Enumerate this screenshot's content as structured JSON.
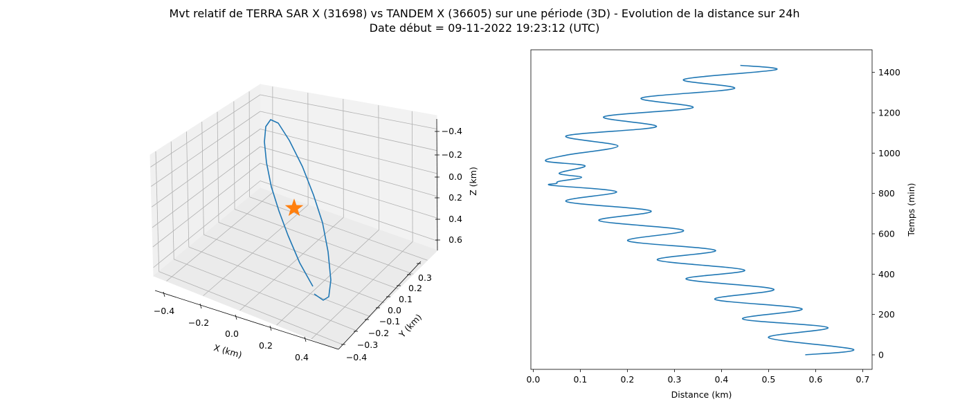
{
  "title_line1": "Mvt relatif de TERRA SAR X (31698) vs TANDEM X (36605) sur une période (3D) - Evolution de la distance sur 24h",
  "title_line2": "Date début = 09-11-2022 19:23:12 (UTC)",
  "colors": {
    "series": "#1f77b4",
    "marker": "#ff7f0e",
    "pane": "#f2f2f2",
    "grid": "#b0b0b0"
  },
  "chart_data": [
    {
      "type": "line3d",
      "xlabel": "X (km)",
      "ylabel": "Y (km)",
      "zlabel": "Z (km)",
      "xticks": [
        "−0.4",
        "−0.2",
        "0.0",
        "0.2",
        "0.4"
      ],
      "yticks": [
        "−0.4",
        "−0.3",
        "−0.2",
        "−0.1",
        "0.0",
        "0.1",
        "0.2",
        "0.3"
      ],
      "zticks": [
        "−0.4",
        "−0.2",
        "0.0",
        "0.2",
        "0.4",
        "0.6"
      ],
      "xlim": [
        -0.45,
        0.5
      ],
      "ylim": [
        -0.42,
        0.35
      ],
      "zlim": [
        -0.45,
        0.65
      ],
      "marker": {
        "shape": "star",
        "x": 0.0,
        "y": 0.0,
        "z": 0.0
      },
      "grid": true
    },
    {
      "type": "line",
      "xlabel": "Distance (km)",
      "ylabel": "Temps (min)",
      "ylabel_side": "right",
      "xlim": [
        -0.005,
        0.72
      ],
      "ylim": [
        -72,
        1512
      ],
      "xticks": [
        0.0,
        0.1,
        0.2,
        0.3,
        0.4,
        0.5,
        0.6,
        0.7
      ],
      "xtick_labels": [
        "0.0",
        "0.1",
        "0.2",
        "0.3",
        "0.4",
        "0.5",
        "0.6",
        "0.7"
      ],
      "yticks": [
        0,
        200,
        400,
        600,
        800,
        1000,
        1200,
        1400
      ],
      "ytick_labels": [
        "0",
        "200",
        "400",
        "600",
        "800",
        "1000",
        "1200",
        "1400"
      ],
      "grid": false,
      "series": [
        {
          "x": [
            0.578,
            0.68,
            0.5,
            0.626,
            0.445,
            0.571,
            0.386,
            0.511,
            0.325,
            0.449,
            0.264,
            0.387,
            0.201,
            0.319,
            0.14,
            0.25,
            0.07,
            0.177,
            0.04,
            0.05,
            0.055,
            0.103,
            0.055,
            0.11,
            0.027,
            0.07,
            0.18,
            0.07,
            0.261,
            0.15,
            0.339,
            0.23,
            0.427,
            0.32,
            0.515,
            0.44
          ],
          "y": [
            0,
            27,
            85,
            135,
            178,
            228,
            275,
            325,
            375,
            420,
            470,
            518,
            565,
            617,
            665,
            713,
            760,
            808,
            840,
            850,
            860,
            880,
            900,
            937,
            960,
            990,
            1035,
            1085,
            1130,
            1180,
            1225,
            1273,
            1320,
            1365,
            1413,
            1435
          ]
        }
      ]
    }
  ]
}
